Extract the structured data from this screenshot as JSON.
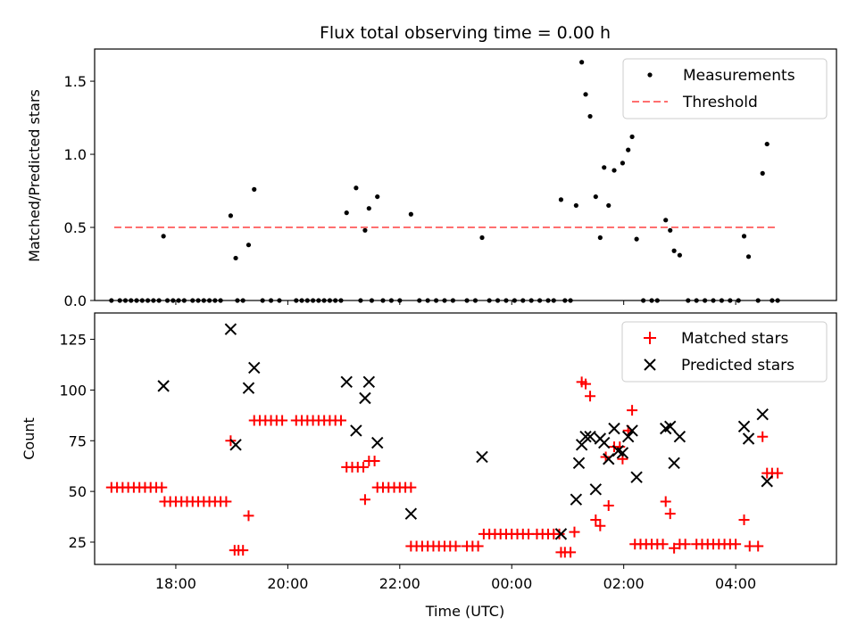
{
  "chart_data": [
    {
      "type": "scatter",
      "title": "Flux total observing time = 0.00 h",
      "xlabel": "",
      "ylabel": "Matched/Predicted stars",
      "xlim": [
        16.55,
        29.8
      ],
      "ylim": [
        0.0,
        1.72
      ],
      "yticks": [
        {
          "value": 0.0,
          "label": "0.0"
        },
        {
          "value": 0.5,
          "label": "0.5"
        },
        {
          "value": 1.0,
          "label": "1.0"
        },
        {
          "value": 1.5,
          "label": "1.5"
        }
      ],
      "legend_position": "top-right",
      "series": [
        {
          "name": "Measurements",
          "marker": "dot",
          "color": "#000000",
          "points": [
            [
              16.85,
              0
            ],
            [
              17.0,
              0
            ],
            [
              17.1,
              0
            ],
            [
              17.2,
              0
            ],
            [
              17.3,
              0
            ],
            [
              17.4,
              0
            ],
            [
              17.5,
              0
            ],
            [
              17.6,
              0
            ],
            [
              17.7,
              0
            ],
            [
              17.85,
              0
            ],
            [
              17.95,
              0
            ],
            [
              18.05,
              0
            ],
            [
              18.15,
              0
            ],
            [
              18.3,
              0
            ],
            [
              18.4,
              0
            ],
            [
              18.5,
              0
            ],
            [
              18.6,
              0
            ],
            [
              18.7,
              0
            ],
            [
              18.8,
              0
            ],
            [
              17.78,
              0.44
            ],
            [
              18.98,
              0.58
            ],
            [
              19.07,
              0.29
            ],
            [
              19.3,
              0.38
            ],
            [
              19.4,
              0.76
            ],
            [
              19.1,
              0
            ],
            [
              19.2,
              0
            ],
            [
              19.55,
              0
            ],
            [
              19.7,
              0
            ],
            [
              19.85,
              0
            ],
            [
              20.15,
              0
            ],
            [
              20.25,
              0
            ],
            [
              20.35,
              0
            ],
            [
              20.45,
              0
            ],
            [
              20.55,
              0
            ],
            [
              20.65,
              0
            ],
            [
              20.75,
              0
            ],
            [
              20.85,
              0
            ],
            [
              20.95,
              0
            ],
            [
              21.05,
              0.6
            ],
            [
              21.22,
              0.77
            ],
            [
              21.38,
              0.48
            ],
            [
              21.45,
              0.63
            ],
            [
              21.6,
              0.71
            ],
            [
              22.2,
              0.59
            ],
            [
              21.3,
              0
            ],
            [
              21.5,
              0
            ],
            [
              21.7,
              0
            ],
            [
              21.85,
              0
            ],
            [
              22.0,
              0
            ],
            [
              22.35,
              0
            ],
            [
              22.5,
              0
            ],
            [
              22.65,
              0
            ],
            [
              22.8,
              0
            ],
            [
              22.95,
              0
            ],
            [
              23.2,
              0
            ],
            [
              23.35,
              0
            ],
            [
              23.47,
              0.43
            ],
            [
              23.6,
              0
            ],
            [
              23.75,
              0
            ],
            [
              23.9,
              0
            ],
            [
              24.05,
              0
            ],
            [
              24.2,
              0
            ],
            [
              24.35,
              0
            ],
            [
              24.5,
              0
            ],
            [
              24.65,
              0
            ],
            [
              24.75,
              0
            ],
            [
              24.88,
              0.69
            ],
            [
              25.15,
              0.65
            ],
            [
              25.25,
              1.63
            ],
            [
              25.32,
              1.41
            ],
            [
              25.4,
              1.26
            ],
            [
              25.5,
              0.71
            ],
            [
              25.58,
              0.43
            ],
            [
              25.65,
              0.91
            ],
            [
              25.73,
              0.65
            ],
            [
              25.83,
              0.89
            ],
            [
              25.98,
              0.94
            ],
            [
              26.08,
              1.03
            ],
            [
              26.15,
              1.12
            ],
            [
              26.23,
              0.42
            ],
            [
              26.75,
              0.55
            ],
            [
              26.83,
              0.48
            ],
            [
              26.9,
              0.34
            ],
            [
              27.0,
              0.31
            ],
            [
              24.95,
              0
            ],
            [
              25.05,
              0
            ],
            [
              26.35,
              0
            ],
            [
              26.5,
              0
            ],
            [
              26.6,
              0
            ],
            [
              27.15,
              0
            ],
            [
              27.3,
              0
            ],
            [
              27.45,
              0
            ],
            [
              27.6,
              0
            ],
            [
              27.75,
              0
            ],
            [
              27.9,
              0
            ],
            [
              28.05,
              0
            ],
            [
              28.15,
              0.44
            ],
            [
              28.23,
              0.3
            ],
            [
              28.48,
              0.87
            ],
            [
              28.56,
              1.07
            ],
            [
              28.4,
              0
            ],
            [
              28.65,
              0
            ],
            [
              28.75,
              0
            ]
          ]
        },
        {
          "name": "Threshold",
          "marker": "dashed-line",
          "color": "#ff6f6f",
          "points": [
            [
              16.9,
              0.5
            ],
            [
              28.75,
              0.5
            ]
          ]
        }
      ]
    },
    {
      "type": "scatter",
      "title": "",
      "xlabel": "Time (UTC)",
      "ylabel": "Count",
      "xlim": [
        16.55,
        29.8
      ],
      "ylim": [
        14,
        138
      ],
      "yticks": [
        {
          "value": 25,
          "label": "25"
        },
        {
          "value": 50,
          "label": "50"
        },
        {
          "value": 75,
          "label": "75"
        },
        {
          "value": 100,
          "label": "100"
        },
        {
          "value": 125,
          "label": "125"
        }
      ],
      "xticks": [
        {
          "value": 18,
          "label": "18:00"
        },
        {
          "value": 20,
          "label": "20:00"
        },
        {
          "value": 22,
          "label": "22:00"
        },
        {
          "value": 24,
          "label": "00:00"
        },
        {
          "value": 26,
          "label": "02:00"
        },
        {
          "value": 28,
          "label": "04:00"
        }
      ],
      "legend_position": "top-right",
      "series": [
        {
          "name": "Matched stars",
          "marker": "plus",
          "color": "#ff0000",
          "points": [
            [
              16.85,
              52
            ],
            [
              16.95,
              52
            ],
            [
              17.05,
              52
            ],
            [
              17.15,
              52
            ],
            [
              17.25,
              52
            ],
            [
              17.35,
              52
            ],
            [
              17.45,
              52
            ],
            [
              17.55,
              52
            ],
            [
              17.65,
              52
            ],
            [
              17.75,
              52
            ],
            [
              17.8,
              45
            ],
            [
              17.9,
              45
            ],
            [
              18.0,
              45
            ],
            [
              18.1,
              45
            ],
            [
              18.2,
              45
            ],
            [
              18.3,
              45
            ],
            [
              18.4,
              45
            ],
            [
              18.5,
              45
            ],
            [
              18.6,
              45
            ],
            [
              18.7,
              45
            ],
            [
              18.8,
              45
            ],
            [
              18.9,
              45
            ],
            [
              18.98,
              75
            ],
            [
              19.05,
              21
            ],
            [
              19.12,
              21
            ],
            [
              19.2,
              21
            ],
            [
              19.3,
              38
            ],
            [
              19.4,
              85
            ],
            [
              19.5,
              85
            ],
            [
              19.6,
              85
            ],
            [
              19.7,
              85
            ],
            [
              19.8,
              85
            ],
            [
              19.9,
              85
            ],
            [
              20.15,
              85
            ],
            [
              20.25,
              85
            ],
            [
              20.35,
              85
            ],
            [
              20.45,
              85
            ],
            [
              20.55,
              85
            ],
            [
              20.65,
              85
            ],
            [
              20.75,
              85
            ],
            [
              20.85,
              85
            ],
            [
              20.95,
              85
            ],
            [
              21.05,
              62
            ],
            [
              21.15,
              62
            ],
            [
              21.25,
              62
            ],
            [
              21.35,
              62
            ],
            [
              21.38,
              46
            ],
            [
              21.45,
              65
            ],
            [
              21.55,
              65
            ],
            [
              21.6,
              52
            ],
            [
              21.7,
              52
            ],
            [
              21.8,
              52
            ],
            [
              21.9,
              52
            ],
            [
              22.0,
              52
            ],
            [
              22.1,
              52
            ],
            [
              22.2,
              52
            ],
            [
              22.2,
              23
            ],
            [
              22.3,
              23
            ],
            [
              22.4,
              23
            ],
            [
              22.5,
              23
            ],
            [
              22.6,
              23
            ],
            [
              22.7,
              23
            ],
            [
              22.8,
              23
            ],
            [
              22.9,
              23
            ],
            [
              23.0,
              23
            ],
            [
              23.2,
              23
            ],
            [
              23.3,
              23
            ],
            [
              23.4,
              23
            ],
            [
              23.5,
              29
            ],
            [
              23.6,
              29
            ],
            [
              23.7,
              29
            ],
            [
              23.8,
              29
            ],
            [
              23.9,
              29
            ],
            [
              24.0,
              29
            ],
            [
              24.1,
              29
            ],
            [
              24.2,
              29
            ],
            [
              24.3,
              29
            ],
            [
              24.45,
              29
            ],
            [
              24.55,
              29
            ],
            [
              24.65,
              29
            ],
            [
              24.75,
              29
            ],
            [
              24.85,
              29
            ],
            [
              24.88,
              20
            ],
            [
              24.95,
              20
            ],
            [
              25.05,
              20
            ],
            [
              25.12,
              30
            ],
            [
              25.25,
              104
            ],
            [
              25.32,
              103
            ],
            [
              25.4,
              97
            ],
            [
              25.5,
              36
            ],
            [
              25.58,
              33
            ],
            [
              25.68,
              67
            ],
            [
              25.73,
              43
            ],
            [
              25.83,
              72
            ],
            [
              25.93,
              72
            ],
            [
              25.98,
              66
            ],
            [
              26.08,
              80
            ],
            [
              26.15,
              90
            ],
            [
              26.2,
              24
            ],
            [
              26.3,
              24
            ],
            [
              26.4,
              24
            ],
            [
              26.5,
              24
            ],
            [
              26.6,
              24
            ],
            [
              26.7,
              24
            ],
            [
              26.75,
              45
            ],
            [
              26.83,
              39
            ],
            [
              26.9,
              22
            ],
            [
              27.0,
              24
            ],
            [
              27.1,
              24
            ],
            [
              27.3,
              24
            ],
            [
              27.4,
              24
            ],
            [
              27.5,
              24
            ],
            [
              27.6,
              24
            ],
            [
              27.7,
              24
            ],
            [
              27.8,
              24
            ],
            [
              27.9,
              24
            ],
            [
              28.0,
              24
            ],
            [
              28.15,
              36
            ],
            [
              28.25,
              23
            ],
            [
              28.4,
              23
            ],
            [
              28.48,
              77
            ],
            [
              28.56,
              59
            ],
            [
              28.65,
              59
            ],
            [
              28.75,
              59
            ]
          ]
        },
        {
          "name": "Predicted stars",
          "marker": "x",
          "color": "#000000",
          "points": [
            [
              17.78,
              102
            ],
            [
              18.98,
              130
            ],
            [
              19.07,
              73
            ],
            [
              19.3,
              101
            ],
            [
              19.4,
              111
            ],
            [
              21.05,
              104
            ],
            [
              21.22,
              80
            ],
            [
              21.38,
              96
            ],
            [
              21.45,
              104
            ],
            [
              21.6,
              74
            ],
            [
              22.2,
              39
            ],
            [
              23.47,
              67
            ],
            [
              24.88,
              29
            ],
            [
              25.15,
              46
            ],
            [
              25.2,
              64
            ],
            [
              25.25,
              73
            ],
            [
              25.32,
              77
            ],
            [
              25.4,
              77
            ],
            [
              25.5,
              51
            ],
            [
              25.58,
              76
            ],
            [
              25.65,
              74
            ],
            [
              25.73,
              66
            ],
            [
              25.83,
              81
            ],
            [
              25.9,
              70
            ],
            [
              25.98,
              69
            ],
            [
              26.08,
              77
            ],
            [
              26.15,
              80
            ],
            [
              26.23,
              57
            ],
            [
              26.75,
              81
            ],
            [
              26.83,
              82
            ],
            [
              26.9,
              64
            ],
            [
              27.0,
              77
            ],
            [
              28.15,
              82
            ],
            [
              28.23,
              76
            ],
            [
              28.48,
              88
            ],
            [
              28.56,
              55
            ]
          ]
        }
      ]
    }
  ]
}
